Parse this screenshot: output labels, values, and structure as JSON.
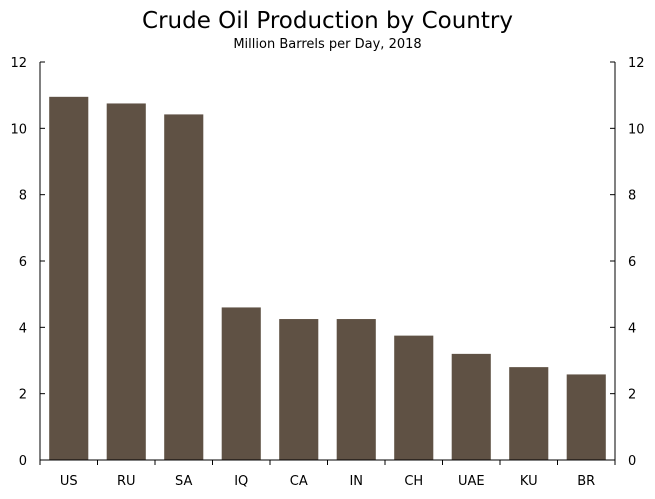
{
  "chart_data": {
    "type": "bar",
    "title": "Crude Oil Production by Country",
    "subtitle": "Million Barrels per Day, 2018",
    "categories": [
      "US",
      "RU",
      "SA",
      "IQ",
      "CA",
      "IN",
      "CH",
      "UAE",
      "KU",
      "BR"
    ],
    "values": [
      10.95,
      10.75,
      10.42,
      4.6,
      4.25,
      4.25,
      3.75,
      3.2,
      2.8,
      2.58
    ],
    "ylim": [
      0,
      12
    ],
    "yticks": [
      0,
      2,
      4,
      6,
      8,
      10,
      12
    ],
    "ytick_labels": [
      "0",
      "2",
      "4",
      "6",
      "8",
      "10",
      "12"
    ],
    "secondary_y_axis": true,
    "grid": false,
    "bar_color": "#5f5144"
  }
}
